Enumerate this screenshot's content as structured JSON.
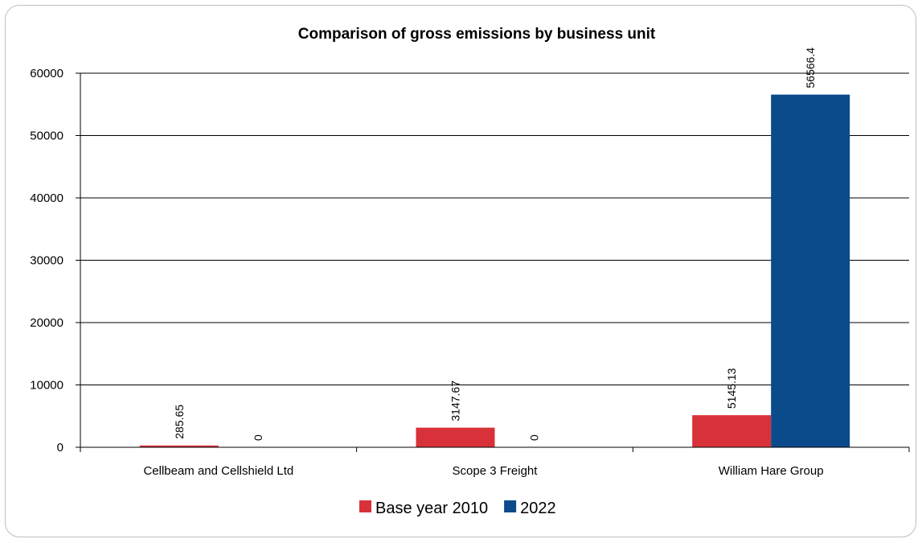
{
  "chart_data": {
    "type": "bar",
    "title": "Comparison of gross emissions by business unit",
    "xlabel": "",
    "ylabel": "",
    "categories": [
      "Cellbeam and Cellshield Ltd",
      "Scope 3 Freight",
      "William Hare Group"
    ],
    "series": [
      {
        "name": "Base year 2010",
        "values": [
          285.65,
          3147.67,
          5145.13
        ],
        "labels": [
          "285.65",
          "3147.67",
          "5145.13"
        ],
        "color": "#d9313a"
      },
      {
        "name": "2022",
        "values": [
          0,
          0,
          56566.4
        ],
        "labels": [
          "0",
          "0",
          "56566.4"
        ],
        "color": "#0b4a8b"
      }
    ],
    "ylim": [
      0,
      60000
    ],
    "yticks": [
      0,
      10000,
      20000,
      30000,
      40000,
      50000,
      60000
    ],
    "ytick_labels": [
      "0",
      "10000",
      "20000",
      "30000",
      "40000",
      "50000",
      "60000"
    ],
    "grid": true,
    "legend_position": "bottom"
  }
}
